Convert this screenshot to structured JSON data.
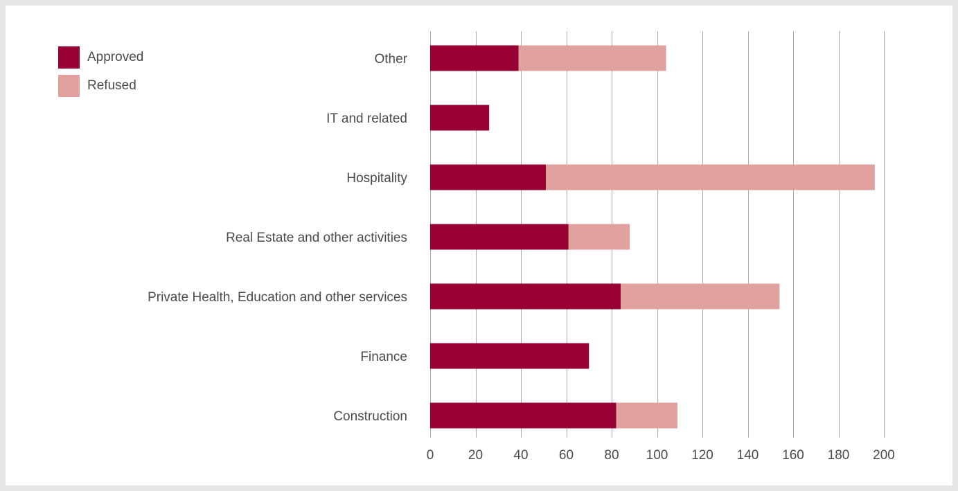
{
  "chart_data": {
    "type": "bar",
    "orientation": "horizontal",
    "stacked": true,
    "categories": [
      "Other",
      "IT and related",
      "Hospitality",
      "Real Estate and other activities",
      "Private Health, Education and other services",
      "Finance",
      "Construction"
    ],
    "series": [
      {
        "name": "Approved",
        "color": "#990033",
        "values": [
          39,
          26,
          51,
          61,
          84,
          70,
          82
        ]
      },
      {
        "name": "Refused",
        "color": "#e0a19f",
        "values": [
          65,
          0,
          145,
          27,
          70,
          0,
          27
        ]
      }
    ],
    "xlim": [
      0,
      200
    ],
    "xticks": [
      0,
      20,
      40,
      60,
      80,
      100,
      120,
      140,
      160,
      180,
      200
    ],
    "grid": true,
    "legend_position": "top-left",
    "title": "",
    "xlabel": "",
    "ylabel": ""
  }
}
